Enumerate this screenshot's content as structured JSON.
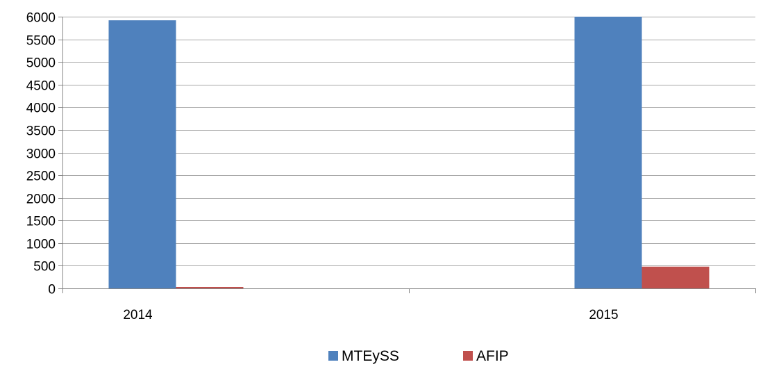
{
  "chart_data": {
    "type": "bar",
    "title": "",
    "xlabel": "",
    "ylabel": "",
    "categories": [
      "2014",
      "2015"
    ],
    "series": [
      {
        "name": "MTEySS",
        "values": [
          5920,
          6000
        ],
        "color": "#4F81BD"
      },
      {
        "name": "AFIP",
        "values": [
          30,
          480
        ],
        "color": "#C0504D"
      }
    ],
    "ylim": [
      0,
      6000
    ],
    "yticks": [
      0,
      500,
      1000,
      1500,
      2000,
      2500,
      3000,
      3500,
      4000,
      4500,
      5000,
      5500,
      6000
    ],
    "grid": true,
    "legend_position": "bottom"
  }
}
